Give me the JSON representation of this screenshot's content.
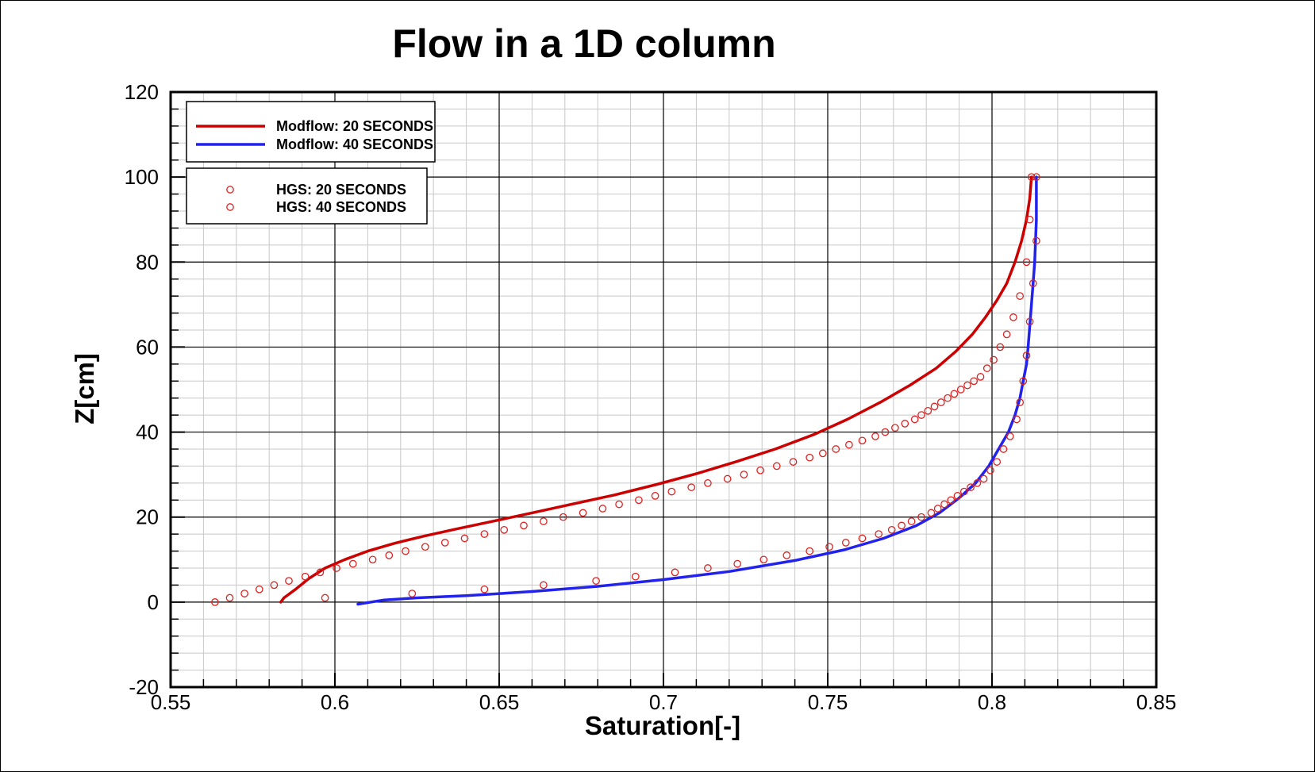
{
  "chart_data": {
    "type": "line",
    "title": "Flow in a 1D column",
    "xlabel": "Saturation[-]",
    "ylabel": "Z[cm]",
    "xlim": [
      0.55,
      0.85
    ],
    "ylim": [
      -20,
      120
    ],
    "xticks": [
      0.55,
      0.6,
      0.65,
      0.7,
      0.75,
      0.8,
      0.85
    ],
    "xtick_labels": [
      "0.55",
      "0.6",
      "0.65",
      "0.7",
      "0.75",
      "0.8",
      "0.85"
    ],
    "yticks": [
      -20,
      0,
      20,
      40,
      60,
      80,
      100,
      120
    ],
    "ytick_labels": [
      "-20",
      "0",
      "20",
      "40",
      "60",
      "80",
      "100",
      "120"
    ],
    "grid": true,
    "legend_placement": "top-left",
    "series": [
      {
        "name": "Modflow: 20 SECONDS",
        "kind": "line",
        "color": "#cc0000",
        "x": [
          0.5835,
          0.5845,
          0.588,
          0.592,
          0.597,
          0.603,
          0.61,
          0.618,
          0.627,
          0.637,
          0.648,
          0.66,
          0.672,
          0.685,
          0.698,
          0.71,
          0.722,
          0.734,
          0.746,
          0.756,
          0.766,
          0.775,
          0.783,
          0.789,
          0.794,
          0.798,
          0.8015,
          0.8045,
          0.807,
          0.809,
          0.8105,
          0.8115,
          0.812
        ],
        "y": [
          0,
          1,
          3,
          5.5,
          8,
          10,
          12,
          13.8,
          15.5,
          17.2,
          19,
          21,
          23,
          25.2,
          27.7,
          30.2,
          33,
          36,
          39.5,
          43,
          47,
          51,
          55,
          59,
          63,
          67,
          71,
          75,
          80,
          85,
          90,
          95,
          100
        ]
      },
      {
        "name": "Modflow: 40 SECONDS",
        "kind": "line",
        "color": "#2222ee",
        "x": [
          0.607,
          0.615,
          0.625,
          0.64,
          0.66,
          0.68,
          0.7,
          0.72,
          0.74,
          0.755,
          0.767,
          0.777,
          0.784,
          0.79,
          0.795,
          0.799,
          0.802,
          0.805,
          0.807,
          0.8085,
          0.8095,
          0.8105,
          0.811,
          0.8115,
          0.812,
          0.8125,
          0.813,
          0.8135,
          0.8135
        ],
        "y": [
          -0.5,
          0.5,
          1.0,
          1.5,
          2.5,
          3.7,
          5.3,
          7.2,
          9.8,
          12.3,
          15,
          18,
          21,
          24.5,
          28,
          32,
          36,
          40,
          44,
          48,
          52,
          56,
          60,
          65,
          70,
          75,
          80,
          90,
          100
        ]
      },
      {
        "name": "HGS: 20 SECONDS",
        "kind": "markers",
        "marker": "circle-open",
        "color": "#dd2222",
        "x": [
          0.5635,
          0.568,
          0.5725,
          0.577,
          0.5815,
          0.586,
          0.591,
          0.5955,
          0.6005,
          0.6055,
          0.6115,
          0.6165,
          0.6215,
          0.6275,
          0.6335,
          0.6395,
          0.6455,
          0.6515,
          0.6575,
          0.6635,
          0.6695,
          0.6755,
          0.6815,
          0.6865,
          0.6925,
          0.6975,
          0.7025,
          0.7085,
          0.7135,
          0.7195,
          0.7245,
          0.7295,
          0.7345,
          0.7395,
          0.7445,
          0.7485,
          0.7525,
          0.7565,
          0.7605,
          0.7645,
          0.7675,
          0.7705,
          0.7735,
          0.7765,
          0.7785,
          0.7805,
          0.7825,
          0.7845,
          0.7865,
          0.7885,
          0.7905,
          0.7925,
          0.7945,
          0.7965,
          0.7985,
          0.8005,
          0.8025,
          0.8045,
          0.8065,
          0.8085,
          0.8105,
          0.8115,
          0.812
        ],
        "y": [
          0,
          1,
          2,
          3,
          4,
          5,
          6,
          7,
          8,
          9,
          10,
          11,
          12,
          13,
          14,
          15,
          16,
          17,
          18,
          19,
          20,
          21,
          22,
          23,
          24,
          25,
          26,
          27,
          28,
          29,
          30,
          31,
          32,
          33,
          34,
          35,
          36,
          37,
          38,
          39,
          40,
          41,
          42,
          43,
          44,
          45,
          46,
          47,
          48,
          49,
          50,
          51,
          52,
          53,
          55,
          57,
          60,
          63,
          67,
          72,
          80,
          90,
          100
        ]
      },
      {
        "name": "HGS: 40 SECONDS",
        "kind": "markers",
        "marker": "circle-open",
        "color": "#dd2222",
        "x": [
          0.597,
          0.6235,
          0.6455,
          0.6635,
          0.6795,
          0.6915,
          0.7035,
          0.7135,
          0.7225,
          0.7305,
          0.7375,
          0.7445,
          0.7505,
          0.7555,
          0.7605,
          0.7655,
          0.7695,
          0.7725,
          0.7755,
          0.7785,
          0.7815,
          0.7835,
          0.7855,
          0.7875,
          0.7895,
          0.7915,
          0.7935,
          0.7955,
          0.7975,
          0.7995,
          0.8015,
          0.8035,
          0.8055,
          0.8075,
          0.8085,
          0.8095,
          0.8105,
          0.8115,
          0.8125,
          0.8135,
          0.8135
        ],
        "y": [
          1,
          2,
          3,
          4,
          5,
          6,
          7,
          8,
          9,
          10,
          11,
          12,
          13,
          14,
          15,
          16,
          17,
          18,
          19,
          20,
          21,
          22,
          23,
          24,
          25,
          26,
          27,
          28,
          29,
          31,
          33,
          36,
          39,
          43,
          47,
          52,
          58,
          66,
          75,
          85,
          100
        ]
      }
    ],
    "legend": [
      {
        "label": "Modflow: 20 SECONDS",
        "color": "#cc0000",
        "kind": "line"
      },
      {
        "label": "Modflow: 40 SECONDS",
        "color": "#2222ee",
        "kind": "line"
      },
      {
        "label": "HGS: 20 SECONDS",
        "color": "#dd2222",
        "kind": "marker"
      },
      {
        "label": "HGS: 40 SECONDS",
        "color": "#dd2222",
        "kind": "marker"
      }
    ]
  }
}
